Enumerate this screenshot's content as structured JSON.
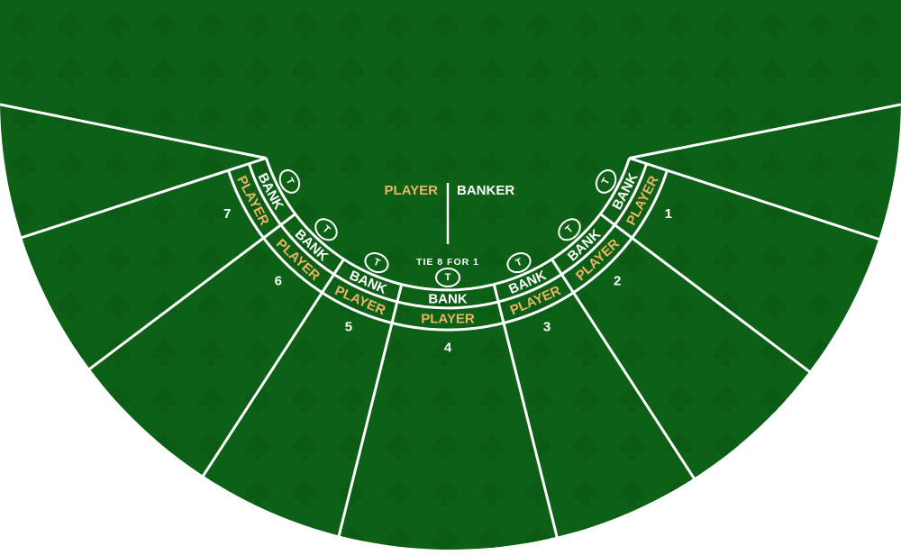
{
  "colors": {
    "felt": "#0d6117",
    "felt_pattern": "#0b5a14",
    "line": "#ffffff",
    "player_gold": "#e8b566",
    "white": "#ffffff"
  },
  "header": {
    "player_label": "PLAYER",
    "banker_label": "BANKER",
    "tie_label": "TIE 8 FOR 1"
  },
  "tie_icon_letter": "T",
  "seats": [
    {
      "number": "1",
      "bank_label": "BANK",
      "player_label": "PLAYER"
    },
    {
      "number": "2",
      "bank_label": "BANK",
      "player_label": "PLAYER"
    },
    {
      "number": "3",
      "bank_label": "BANK",
      "player_label": "PLAYER"
    },
    {
      "number": "4",
      "bank_label": "BANK",
      "player_label": "PLAYER"
    },
    {
      "number": "5",
      "bank_label": "BANK",
      "player_label": "PLAYER"
    },
    {
      "number": "6",
      "bank_label": "BANK",
      "player_label": "PLAYER"
    },
    {
      "number": "7",
      "bank_label": "BANK",
      "player_label": "PLAYER"
    }
  ]
}
